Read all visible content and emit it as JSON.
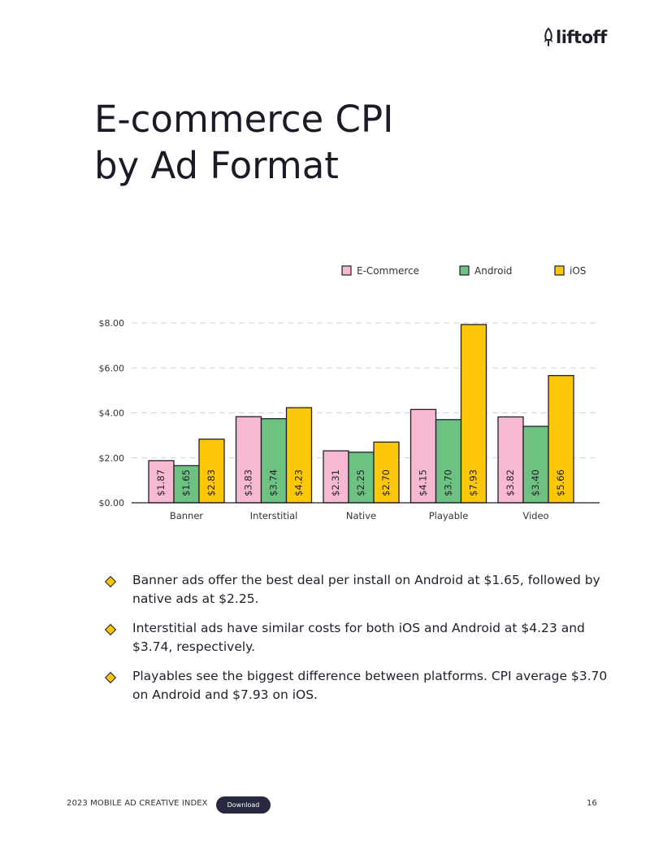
{
  "brand": {
    "name": "liftoff",
    "icon": "rocket-icon"
  },
  "title_lines": [
    "E-commerce CPI",
    "by Ad Format"
  ],
  "chart_data": {
    "type": "bar",
    "categories": [
      "Banner",
      "Interstitial",
      "Native",
      "Playable",
      "Video"
    ],
    "series": [
      {
        "name": "E-Commerce",
        "color": "#f7b9d1",
        "values": [
          1.87,
          3.83,
          2.31,
          4.15,
          3.82
        ],
        "labels": [
          "$1.87",
          "$3.83",
          "$2.31",
          "$4.15",
          "$3.82"
        ]
      },
      {
        "name": "Android",
        "color": "#6dc282",
        "values": [
          1.65,
          3.74,
          2.25,
          3.7,
          3.4
        ],
        "labels": [
          "$1.65",
          "$3.74",
          "$2.25",
          "$3.70",
          "$3.40"
        ]
      },
      {
        "name": "iOS",
        "color": "#fcc706",
        "values": [
          2.83,
          4.23,
          2.7,
          7.93,
          5.66
        ],
        "labels": [
          "$2.83",
          "$4.23",
          "$2.70",
          "$7.93",
          "$5.66"
        ]
      }
    ],
    "yticks": [
      "$0.00",
      "$2.00",
      "$4.00",
      "$6.00",
      "$8.00"
    ],
    "ylim": [
      0,
      8
    ],
    "grid": true,
    "legend": "top-right"
  },
  "bullets": [
    "Banner ads offer the best deal per install on Android at $1.65, followed by native ads at $2.25.",
    "Interstitial ads have similar costs for both iOS and Android at $4.23 and $3.74, respectively.",
    "Playables see the biggest difference between platforms. CPI average $3.70 on Android and $7.93 on iOS."
  ],
  "footer": {
    "report": "2023 MOBILE AD CREATIVE INDEX",
    "download_label": "Download",
    "page": "16"
  }
}
